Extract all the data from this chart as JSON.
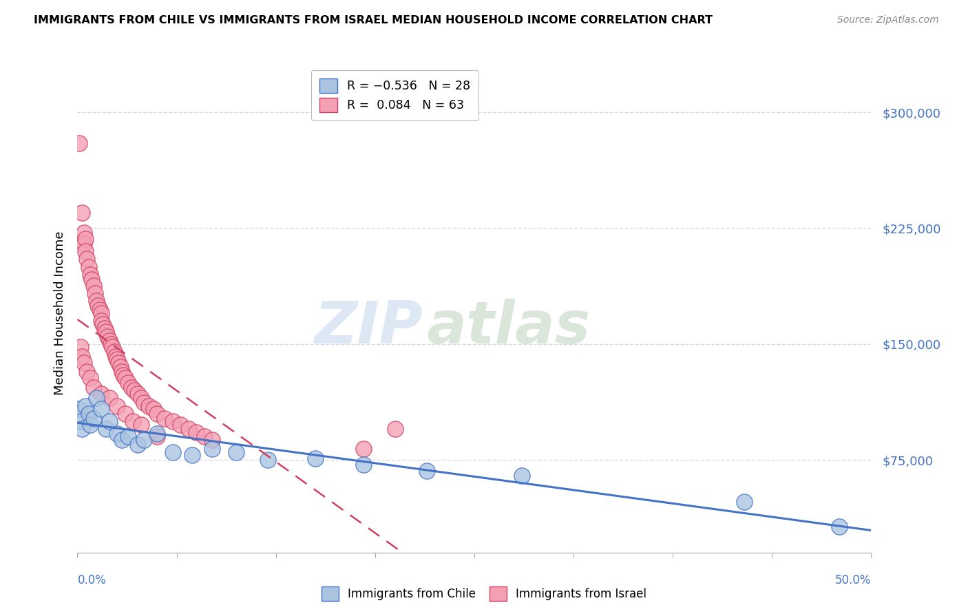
{
  "title": "IMMIGRANTS FROM CHILE VS IMMIGRANTS FROM ISRAEL MEDIAN HOUSEHOLD INCOME CORRELATION CHART",
  "source": "Source: ZipAtlas.com",
  "ylabel": "Median Household Income",
  "yticks": [
    75000,
    150000,
    225000,
    300000
  ],
  "ytick_labels": [
    "$75,000",
    "$150,000",
    "$225,000",
    "$300,000"
  ],
  "xlim": [
    0.0,
    0.5
  ],
  "ylim": [
    15000,
    325000
  ],
  "legend_chile": "R = −0.536   N = 28",
  "legend_israel": "R =  0.084   N = 63",
  "watermark_zip": "ZIP",
  "watermark_atlas": "atlas",
  "chile_color": "#aac4e0",
  "israel_color": "#f4a0b4",
  "chile_line_color": "#4472c4",
  "israel_line_color": "#d04060",
  "background_color": "#ffffff",
  "grid_color": "#d8d8e8",
  "chile_scatter": [
    [
      0.001,
      108000
    ],
    [
      0.002,
      100000
    ],
    [
      0.003,
      95000
    ],
    [
      0.005,
      110000
    ],
    [
      0.007,
      105000
    ],
    [
      0.008,
      98000
    ],
    [
      0.01,
      102000
    ],
    [
      0.012,
      115000
    ],
    [
      0.015,
      108000
    ],
    [
      0.018,
      95000
    ],
    [
      0.02,
      100000
    ],
    [
      0.025,
      92000
    ],
    [
      0.028,
      88000
    ],
    [
      0.032,
      90000
    ],
    [
      0.038,
      85000
    ],
    [
      0.042,
      88000
    ],
    [
      0.05,
      92000
    ],
    [
      0.06,
      80000
    ],
    [
      0.072,
      78000
    ],
    [
      0.085,
      82000
    ],
    [
      0.1,
      80000
    ],
    [
      0.12,
      75000
    ],
    [
      0.15,
      76000
    ],
    [
      0.18,
      72000
    ],
    [
      0.22,
      68000
    ],
    [
      0.28,
      65000
    ],
    [
      0.42,
      48000
    ],
    [
      0.48,
      32000
    ]
  ],
  "israel_scatter": [
    [
      0.001,
      280000
    ],
    [
      0.003,
      235000
    ],
    [
      0.004,
      222000
    ],
    [
      0.004,
      215000
    ],
    [
      0.005,
      218000
    ],
    [
      0.005,
      210000
    ],
    [
      0.006,
      205000
    ],
    [
      0.007,
      200000
    ],
    [
      0.008,
      195000
    ],
    [
      0.009,
      192000
    ],
    [
      0.01,
      188000
    ],
    [
      0.011,
      183000
    ],
    [
      0.012,
      178000
    ],
    [
      0.013,
      175000
    ],
    [
      0.014,
      172000
    ],
    [
      0.015,
      170000
    ],
    [
      0.015,
      165000
    ],
    [
      0.016,
      163000
    ],
    [
      0.017,
      160000
    ],
    [
      0.018,
      158000
    ],
    [
      0.019,
      155000
    ],
    [
      0.02,
      152000
    ],
    [
      0.021,
      150000
    ],
    [
      0.022,
      148000
    ],
    [
      0.023,
      145000
    ],
    [
      0.024,
      142000
    ],
    [
      0.025,
      140000
    ],
    [
      0.026,
      138000
    ],
    [
      0.027,
      135000
    ],
    [
      0.028,
      132000
    ],
    [
      0.029,
      130000
    ],
    [
      0.03,
      128000
    ],
    [
      0.032,
      125000
    ],
    [
      0.034,
      122000
    ],
    [
      0.036,
      120000
    ],
    [
      0.038,
      118000
    ],
    [
      0.04,
      115000
    ],
    [
      0.042,
      112000
    ],
    [
      0.045,
      110000
    ],
    [
      0.048,
      108000
    ],
    [
      0.05,
      105000
    ],
    [
      0.055,
      102000
    ],
    [
      0.06,
      100000
    ],
    [
      0.065,
      98000
    ],
    [
      0.07,
      95000
    ],
    [
      0.075,
      93000
    ],
    [
      0.08,
      90000
    ],
    [
      0.085,
      88000
    ],
    [
      0.002,
      148000
    ],
    [
      0.003,
      142000
    ],
    [
      0.004,
      138000
    ],
    [
      0.006,
      132000
    ],
    [
      0.008,
      128000
    ],
    [
      0.01,
      122000
    ],
    [
      0.015,
      118000
    ],
    [
      0.02,
      115000
    ],
    [
      0.025,
      110000
    ],
    [
      0.03,
      105000
    ],
    [
      0.035,
      100000
    ],
    [
      0.04,
      98000
    ],
    [
      0.05,
      90000
    ],
    [
      0.2,
      95000
    ],
    [
      0.18,
      82000
    ]
  ]
}
